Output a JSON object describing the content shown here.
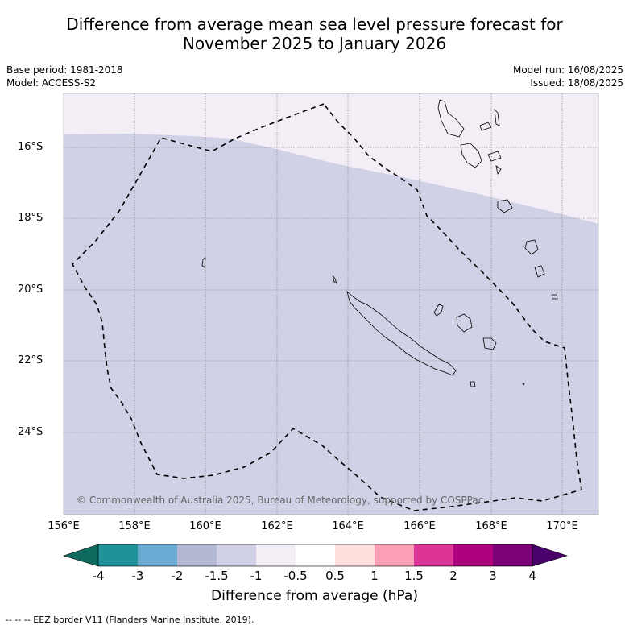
{
  "title_line1": "Difference from average mean sea level pressure forecast for",
  "title_line2": "November 2025 to January 2026",
  "meta_left": {
    "base_period": "Base period: 1981-2018",
    "model": "Model: ACCESS-S2"
  },
  "meta_right": {
    "model_run": "Model run: 16/08/2025",
    "issued": "Issued: 18/08/2025"
  },
  "lat_labels": [
    "16°S",
    "18°S",
    "20°S",
    "22°S",
    "24°S"
  ],
  "lon_labels": [
    "156°E",
    "158°E",
    "160°E",
    "162°E",
    "164°E",
    "166°E",
    "168°E",
    "170°E"
  ],
  "copyright": "© Commonwealth of Australia 2025, Bureau of Meteorology, supported by COSPPac",
  "colorbar": {
    "title": "Difference from average (hPa)",
    "tick_labels": [
      "-4",
      "-3",
      "-2",
      "-1.5",
      "-1",
      "-0.5",
      "0.5",
      "1",
      "1.5",
      "2",
      "3",
      "4"
    ],
    "colors": [
      "#0f6b5f",
      "#1f9199",
      "#6aabd3",
      "#b3b9d3",
      "#d0d1e6",
      "#f3edf6",
      "#ffffff",
      "#fde0dd",
      "#fa9fb5",
      "#dd3497",
      "#ae017e",
      "#7a0177",
      "#49006a"
    ]
  },
  "map": {
    "colors": {
      "main_fill": "#d0d1e6",
      "north_fill": "#f3edf6",
      "eez_line": "#000000"
    },
    "extent": {
      "lon": [
        156,
        171
      ],
      "lat": [
        -26.8,
        -14.4
      ]
    }
  },
  "footnote": "-- -- -- EEZ border V11 (Flanders Marine Institute, 2019)."
}
